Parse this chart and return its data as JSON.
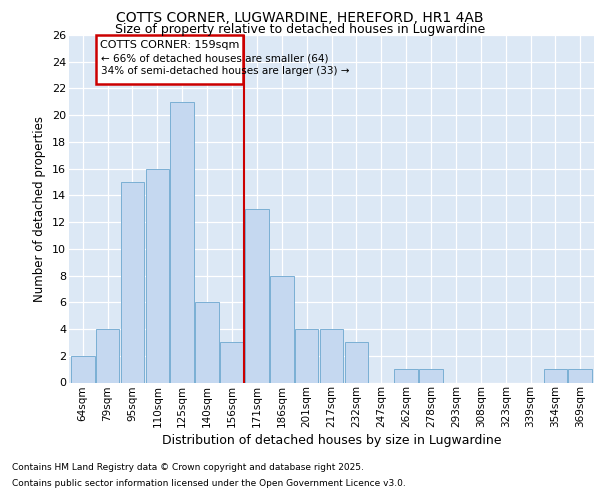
{
  "title1": "COTTS CORNER, LUGWARDINE, HEREFORD, HR1 4AB",
  "title2": "Size of property relative to detached houses in Lugwardine",
  "xlabel": "Distribution of detached houses by size in Lugwardine",
  "ylabel": "Number of detached properties",
  "categories": [
    "64sqm",
    "79sqm",
    "95sqm",
    "110sqm",
    "125sqm",
    "140sqm",
    "156sqm",
    "171sqm",
    "186sqm",
    "201sqm",
    "217sqm",
    "232sqm",
    "247sqm",
    "262sqm",
    "278sqm",
    "293sqm",
    "308sqm",
    "323sqm",
    "339sqm",
    "354sqm",
    "369sqm"
  ],
  "values": [
    2,
    4,
    15,
    16,
    21,
    6,
    3,
    13,
    8,
    4,
    4,
    3,
    0,
    1,
    1,
    0,
    0,
    0,
    0,
    1,
    1
  ],
  "bar_color": "#c5d8f0",
  "bar_edge_color": "#7aafd4",
  "ref_line_label": "COTTS CORNER: 159sqm",
  "ref_line_color": "#cc0000",
  "annotation_line1": "← 66% of detached houses are smaller (64)",
  "annotation_line2": "34% of semi-detached houses are larger (33) →",
  "ylim": [
    0,
    26
  ],
  "yticks": [
    0,
    2,
    4,
    6,
    8,
    10,
    12,
    14,
    16,
    18,
    20,
    22,
    24,
    26
  ],
  "footnote1": "Contains HM Land Registry data © Crown copyright and database right 2025.",
  "footnote2": "Contains public sector information licensed under the Open Government Licence v3.0.",
  "bg_color": "#ffffff",
  "plot_bg_color": "#dce8f5"
}
